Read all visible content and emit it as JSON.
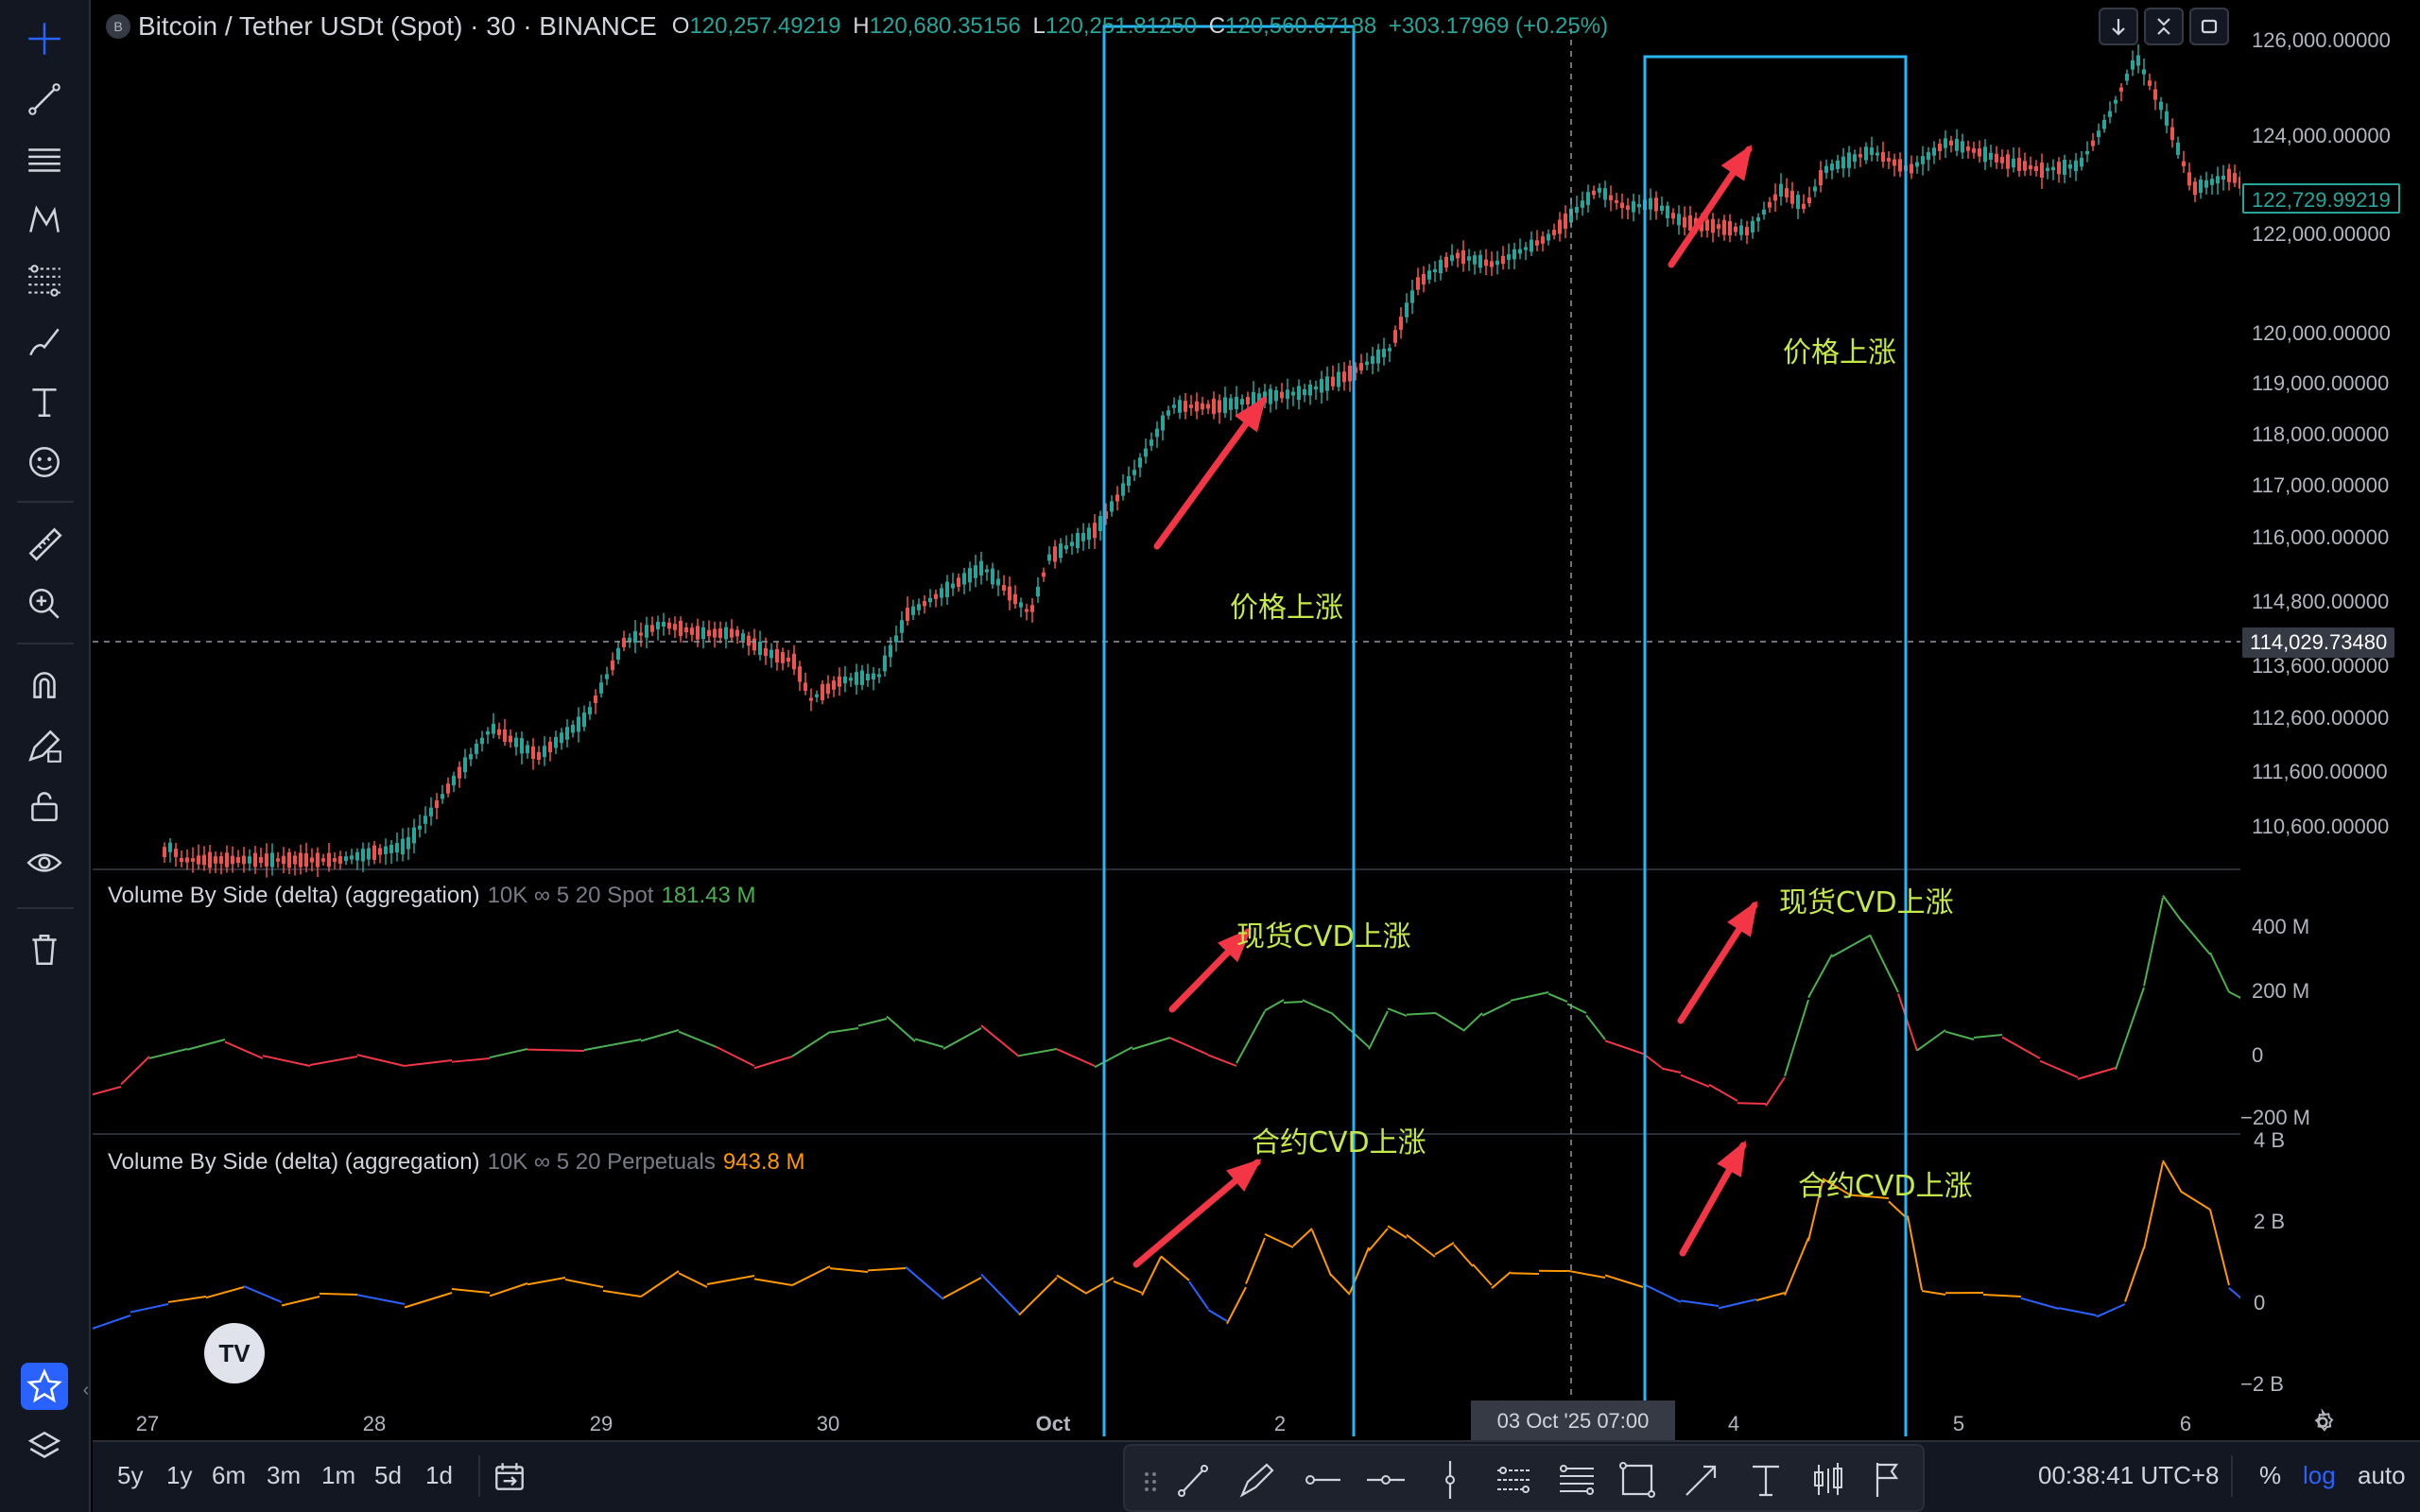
{
  "header": {
    "symbol_icon": "B",
    "title": "Bitcoin / Tether USDt (Spot) · 30 · BINANCE",
    "open_label": "O",
    "open": "120,257.49219",
    "high_label": "H",
    "high": "120,680.35156",
    "low_label": "L",
    "low": "120,251.81250",
    "close_label": "C",
    "close": "120,560.67188",
    "change": "+303.17969 (+0.25%)"
  },
  "top_buttons": [
    "down-arrow-icon",
    "collapse-icon",
    "maximize-icon"
  ],
  "price_scale": {
    "labels": [
      "126,000.00000",
      "124,000.00000",
      "122,000.00000",
      "120,000.00000",
      "119,000.00000",
      "118,000.00000",
      "117,000.00000",
      "116,000.00000",
      "114,800.00000",
      "113,600.00000",
      "112,600.00000",
      "111,600.00000",
      "110,600.00000"
    ],
    "current_price": "122,729.99219",
    "crosshair_price": "114,029.73480"
  },
  "indicator1": {
    "name": "Volume By Side (delta) (aggregation)",
    "params": "10K ∞ 5 20 Spot",
    "value": "181.43 M",
    "scale": [
      "400 M",
      "200 M",
      "0",
      "−200 M"
    ]
  },
  "indicator2": {
    "name": "Volume By Side (delta) (aggregation)",
    "params": "10K ∞ 5 20 Perpetuals",
    "value": "943.8 M",
    "scale": [
      "4 B",
      "2 B",
      "0",
      "−2 B"
    ]
  },
  "annotations": {
    "price_up_1": "价格上涨",
    "price_up_2": "价格上涨",
    "spot_cvd_up_1": "现货CVD上涨",
    "spot_cvd_up_2": "现货CVD上涨",
    "perp_cvd_up_1": "合约CVD上涨",
    "perp_cvd_up_2": "合约CVD上涨"
  },
  "time_axis": {
    "labels": [
      "27",
      "28",
      "29",
      "30",
      "Oct",
      "2",
      "4",
      "5",
      "6"
    ],
    "crosshair_time": "03 Oct '25   07:00"
  },
  "bottom_bar": {
    "ranges": [
      "5y",
      "1y",
      "6m",
      "3m",
      "1m",
      "5d",
      "1d"
    ],
    "clock": "00:38:41 UTC+8",
    "percent": "%",
    "log": "log",
    "auto": "auto"
  },
  "left_tools": [
    "crosshair-icon",
    "trend-line-icon",
    "horizontal-lines-icon",
    "pattern-icon",
    "fib-icon",
    "brush-icon",
    "text-icon",
    "emoji-icon",
    "ruler-icon",
    "zoom-in-icon",
    "magnet-icon",
    "lock-drawing-icon",
    "unlock-icon",
    "eye-icon",
    "trash-icon",
    "favorites-star-icon",
    "layers-icon"
  ],
  "draw_tools": [
    "drag-handle-icon",
    "trend-line-icon",
    "brush-icon",
    "horizontal-ray-icon",
    "horizontal-line-icon",
    "vertical-line-icon",
    "parallel-channel-icon",
    "fib-retracement-icon",
    "rectangle-icon",
    "arrow-icon",
    "text-icon",
    "long-position-icon",
    "flag-icon"
  ],
  "colors": {
    "up": "#26a69a",
    "down": "#ef5350",
    "cvd_up": "#4caf50",
    "cvd_down": "#f23645",
    "perp_up": "#ff9800",
    "perp_down": "#2962ff",
    "highlight_box": "#29b6f6",
    "arrow": "#f23645",
    "annotation": "#c5e84a",
    "accent": "#2962ff"
  }
}
